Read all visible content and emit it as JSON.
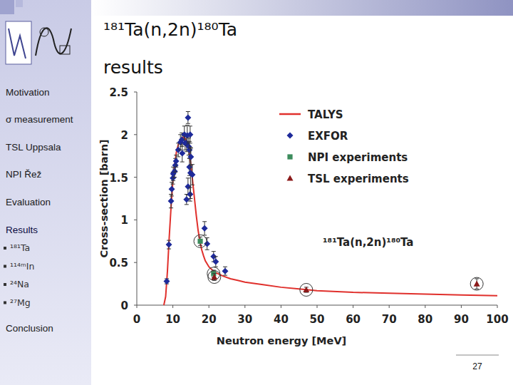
{
  "slide": {
    "title": [
      "¹⁸¹Ta(n,2n)¹⁸⁰Ta",
      "results"
    ],
    "nav": [
      "Motivation",
      "σ measurement",
      "TSL Uppsala",
      "NPI Řež",
      "Evaluation",
      "Results",
      "Conclusion"
    ],
    "results_items": [
      "¹⁸¹Ta",
      "¹¹⁴ᵐIn",
      "²⁴Na",
      "²⁷Mg"
    ],
    "page_number": 27
  },
  "chart_data": {
    "type": "scatter",
    "x_label": "Neutron energy [MeV]",
    "y_label": "Cross-section [barn]",
    "annotation": "¹⁸¹Ta(n,2n)¹⁸⁰Ta",
    "xlim": [
      0,
      100
    ],
    "xticks": [
      0,
      10,
      20,
      30,
      40,
      50,
      60,
      70,
      80,
      90,
      100
    ],
    "ylim": [
      0,
      2.5
    ],
    "yticks": [
      0,
      0.5,
      1,
      1.5,
      2,
      2.5
    ],
    "grid": false,
    "legend": "top-right",
    "series": [
      {
        "name": "TALYS",
        "type": "line",
        "color": "#e0302c",
        "marker": "none",
        "line_style": "solid",
        "x": [
          7.5,
          8,
          8.5,
          9,
          9.5,
          10,
          10.5,
          11,
          11.5,
          12,
          12.5,
          13,
          13.5,
          14,
          14.5,
          15,
          15.5,
          16,
          16.5,
          17,
          17.5,
          18,
          18.5,
          19,
          20,
          21,
          22,
          24,
          26,
          28,
          30,
          35,
          40,
          45,
          50,
          60,
          70,
          80,
          90,
          100
        ],
        "values": [
          0,
          0.1,
          0.4,
          0.8,
          1.15,
          1.45,
          1.65,
          1.8,
          1.88,
          1.93,
          1.96,
          1.97,
          1.95,
          1.9,
          1.8,
          1.65,
          1.45,
          1.25,
          1.05,
          0.88,
          0.75,
          0.65,
          0.58,
          0.52,
          0.45,
          0.41,
          0.38,
          0.34,
          0.31,
          0.29,
          0.27,
          0.24,
          0.21,
          0.19,
          0.17,
          0.15,
          0.14,
          0.13,
          0.12,
          0.11
        ]
      },
      {
        "name": "EXFOR",
        "type": "scatter",
        "color": "#1e2a9a",
        "marker": "diamond",
        "x": [
          8.3,
          8.9,
          9.5,
          9.7,
          10.0,
          10.1,
          10.5,
          10.7,
          10.9,
          11.5,
          12.1,
          12.5,
          12.6,
          13.2,
          13.4,
          13.8,
          13.8,
          14.0,
          14.2,
          14.2,
          14.4,
          14.6,
          14.6,
          14.8,
          14.8,
          14.9,
          15.0,
          15.4,
          18.8,
          19.5,
          21.3,
          21.9,
          24.5
        ],
        "values": [
          0.28,
          0.71,
          1.22,
          1.36,
          1.49,
          1.54,
          1.57,
          1.64,
          1.69,
          1.82,
          1.91,
          1.94,
          1.78,
          2.0,
          1.9,
          1.9,
          1.24,
          1.99,
          2.2,
          1.39,
          1.86,
          1.82,
          1.62,
          1.3,
          2.0,
          1.55,
          1.74,
          1.53,
          0.9,
          0.72,
          0.57,
          0.51,
          0.4
        ],
        "errors": [
          0.03,
          0.05,
          0.08,
          0.08,
          0.07,
          0.08,
          0.07,
          0.08,
          0.07,
          0.08,
          0.09,
          0.08,
          0.1,
          0.1,
          0.08,
          0.1,
          0.06,
          0.12,
          0.07,
          0.1,
          0.1,
          0.1,
          0.1,
          0.08,
          0.1,
          0.3,
          0.1,
          0.12,
          0.08,
          0.07,
          0.06,
          0.06,
          0.05
        ]
      },
      {
        "name": "NPI experiments",
        "type": "scatter",
        "color": "#3c8c5c",
        "marker": "square",
        "x": [
          17.6,
          21.3
        ],
        "values": [
          0.75,
          0.37
        ],
        "errors": [
          0.05,
          0.04
        ]
      },
      {
        "name": "TSL experiments",
        "type": "scatter",
        "color": "#8b1a1a",
        "marker": "triangle",
        "x": [
          21.5,
          47,
          94.3
        ],
        "values": [
          0.33,
          0.18,
          0.25
        ],
        "errors": [
          0.04,
          0.03,
          0.06
        ]
      }
    ]
  }
}
